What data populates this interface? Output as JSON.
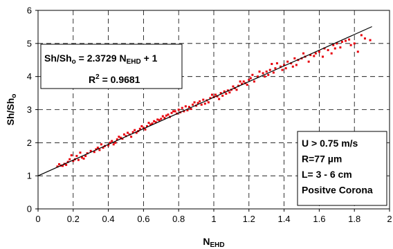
{
  "chart_data": {
    "type": "scatter",
    "xlabel": {
      "main": "N",
      "sub": "EHD"
    },
    "ylabel": {
      "main": "Sh/Sh",
      "sub": "o"
    },
    "xlim": [
      0,
      2
    ],
    "ylim": [
      0,
      6
    ],
    "x_ticks": [
      "0",
      "0.2",
      "0.4",
      "0.6",
      "0.8",
      "1",
      "1.2",
      "1.4",
      "1.6",
      "1.8",
      "2"
    ],
    "y_ticks": [
      "0",
      "1",
      "2",
      "3",
      "4",
      "5",
      "6"
    ],
    "grid": true,
    "fit_line": {
      "slope": 2.3729,
      "intercept": 1,
      "x_range": [
        0.0,
        1.9
      ]
    },
    "equation_box": {
      "placement": "upper-left",
      "line1": {
        "a": "Sh/Sh",
        "a_sub": "o",
        "b": " = 2.3729 N",
        "b_sub": "EHD",
        "c": " + 1"
      },
      "line2": {
        "a": "R",
        "a_sup": "2",
        "b": " = 0.9681"
      }
    },
    "conditions_box": {
      "placement": "lower-right",
      "lines": [
        "U > 0.75  m/s",
        "R=77 µm",
        "L= 3 - 6 cm",
        "Positve Corona"
      ]
    },
    "series": [
      {
        "marker_color": "#e8000b",
        "points": [
          [
            0.11,
            1.28
          ],
          [
            0.12,
            1.35
          ],
          [
            0.13,
            1.31
          ],
          [
            0.14,
            1.3
          ],
          [
            0.15,
            1.36
          ],
          [
            0.16,
            1.33
          ],
          [
            0.17,
            1.42
          ],
          [
            0.18,
            1.5
          ],
          [
            0.19,
            1.62
          ],
          [
            0.2,
            1.45
          ],
          [
            0.21,
            1.5
          ],
          [
            0.22,
            1.6
          ],
          [
            0.23,
            1.48
          ],
          [
            0.24,
            1.7
          ],
          [
            0.25,
            1.55
          ],
          [
            0.26,
            1.52
          ],
          [
            0.28,
            1.68
          ],
          [
            0.3,
            1.75
          ],
          [
            0.32,
            1.72
          ],
          [
            0.34,
            1.85
          ],
          [
            0.35,
            1.78
          ],
          [
            0.36,
            1.95
          ],
          [
            0.38,
            1.9
          ],
          [
            0.4,
            1.92
          ],
          [
            0.42,
            2.05
          ],
          [
            0.44,
            2.0
          ],
          [
            0.45,
            2.1
          ],
          [
            0.46,
            2.18
          ],
          [
            0.48,
            2.12
          ],
          [
            0.5,
            2.2
          ],
          [
            0.52,
            2.25
          ],
          [
            0.54,
            2.32
          ],
          [
            0.55,
            2.38
          ],
          [
            0.56,
            2.3
          ],
          [
            0.58,
            2.42
          ],
          [
            0.6,
            2.45
          ],
          [
            0.62,
            2.5
          ],
          [
            0.63,
            2.6
          ],
          [
            0.64,
            2.55
          ],
          [
            0.66,
            2.65
          ],
          [
            0.68,
            2.7
          ],
          [
            0.7,
            2.72
          ],
          [
            0.71,
            2.8
          ],
          [
            0.72,
            2.75
          ],
          [
            0.74,
            2.85
          ],
          [
            0.76,
            2.9
          ],
          [
            0.78,
            2.95
          ],
          [
            0.8,
            3.0
          ],
          [
            0.81,
            2.92
          ],
          [
            0.82,
            3.05
          ],
          [
            0.84,
            3.1
          ],
          [
            0.85,
            2.98
          ],
          [
            0.86,
            3.08
          ],
          [
            0.88,
            3.15
          ],
          [
            0.9,
            3.12
          ],
          [
            0.91,
            3.2
          ],
          [
            0.92,
            3.25
          ],
          [
            0.94,
            3.3
          ],
          [
            0.95,
            3.18
          ],
          [
            0.96,
            3.28
          ],
          [
            0.98,
            3.35
          ],
          [
            1.0,
            3.38
          ],
          [
            1.01,
            3.45
          ],
          [
            1.02,
            3.4
          ],
          [
            1.04,
            3.5
          ],
          [
            1.05,
            3.42
          ],
          [
            1.06,
            3.55
          ],
          [
            1.08,
            3.58
          ],
          [
            1.1,
            3.6
          ],
          [
            1.11,
            3.7
          ],
          [
            1.12,
            3.65
          ],
          [
            1.14,
            3.72
          ],
          [
            1.16,
            3.78
          ],
          [
            1.17,
            3.85
          ],
          [
            1.18,
            3.8
          ],
          [
            1.2,
            3.9
          ],
          [
            1.21,
            3.95
          ],
          [
            1.22,
            4.05
          ],
          [
            1.25,
            4.0
          ],
          [
            1.28,
            4.1
          ],
          [
            1.3,
            4.15
          ],
          [
            1.32,
            4.2
          ],
          [
            1.33,
            4.38
          ],
          [
            1.35,
            4.25
          ],
          [
            1.38,
            4.3
          ],
          [
            1.4,
            4.35
          ],
          [
            1.42,
            4.45
          ],
          [
            1.45,
            4.3
          ],
          [
            1.46,
            4.55
          ],
          [
            1.48,
            4.5
          ],
          [
            1.5,
            4.55
          ],
          [
            1.52,
            4.6
          ],
          [
            1.55,
            4.65
          ],
          [
            1.58,
            4.7
          ],
          [
            1.6,
            4.75
          ],
          [
            1.63,
            4.85
          ],
          [
            1.65,
            4.8
          ],
          [
            1.68,
            4.95
          ],
          [
            1.7,
            5.0
          ],
          [
            1.72,
            4.88
          ],
          [
            1.75,
            5.08
          ],
          [
            1.78,
            4.95
          ],
          [
            1.8,
            5.0
          ],
          [
            1.84,
            5.25
          ],
          [
            1.86,
            5.15
          ],
          [
            1.89,
            5.1
          ],
          [
            0.27,
            1.6
          ],
          [
            0.33,
            1.8
          ],
          [
            0.37,
            1.85
          ],
          [
            0.41,
            2.0
          ],
          [
            0.43,
            1.95
          ],
          [
            0.47,
            2.15
          ],
          [
            0.49,
            2.25
          ],
          [
            0.51,
            2.3
          ],
          [
            0.53,
            2.18
          ],
          [
            0.57,
            2.35
          ],
          [
            0.59,
            2.5
          ],
          [
            0.61,
            2.4
          ],
          [
            0.65,
            2.58
          ],
          [
            0.67,
            2.62
          ],
          [
            0.69,
            2.68
          ],
          [
            0.73,
            2.82
          ],
          [
            0.75,
            2.78
          ],
          [
            0.77,
            2.95
          ],
          [
            0.79,
            2.88
          ],
          [
            0.83,
            2.95
          ],
          [
            0.87,
            3.02
          ],
          [
            0.89,
            3.22
          ],
          [
            0.93,
            3.15
          ],
          [
            0.97,
            3.22
          ],
          [
            0.99,
            3.45
          ],
          [
            1.03,
            3.32
          ],
          [
            1.07,
            3.48
          ],
          [
            1.09,
            3.52
          ],
          [
            1.13,
            3.6
          ],
          [
            1.15,
            3.85
          ],
          [
            1.19,
            3.75
          ],
          [
            1.23,
            3.85
          ],
          [
            1.26,
            4.15
          ],
          [
            1.29,
            4.0
          ],
          [
            1.31,
            4.05
          ],
          [
            1.34,
            4.12
          ],
          [
            1.36,
            4.4
          ],
          [
            1.39,
            4.2
          ],
          [
            1.41,
            4.25
          ],
          [
            1.44,
            4.4
          ],
          [
            1.47,
            4.35
          ],
          [
            1.51,
            4.7
          ],
          [
            1.54,
            4.45
          ],
          [
            1.57,
            4.62
          ],
          [
            1.62,
            4.6
          ],
          [
            1.67,
            4.7
          ],
          [
            1.69,
            4.85
          ],
          [
            1.73,
            5.05
          ],
          [
            1.77,
            5.12
          ],
          [
            1.82,
            4.75
          ]
        ]
      }
    ]
  }
}
